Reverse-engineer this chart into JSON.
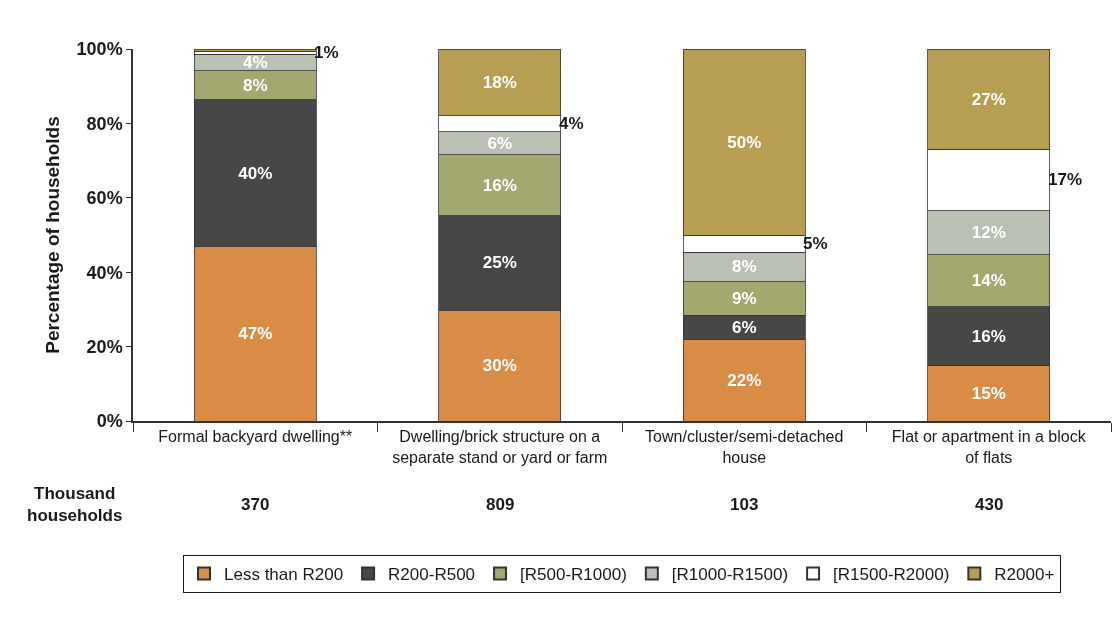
{
  "chart_data": {
    "type": "bar",
    "stacked": true,
    "ylabel": "Percentage of households",
    "categories": [
      "Formal backyard dwelling**",
      "Dwelling/brick structure on a separate stand or yard or farm",
      "Town/cluster/semi-detached house",
      "Flat or apartment in a block of flats"
    ],
    "ylim": [
      0,
      100
    ],
    "yticks": [
      {
        "value": 0,
        "label": "0%"
      },
      {
        "value": 20,
        "label": "20%"
      },
      {
        "value": 40,
        "label": "40%"
      },
      {
        "value": 60,
        "label": "60%"
      },
      {
        "value": 80,
        "label": "80%"
      },
      {
        "value": 100,
        "label": "100%"
      }
    ],
    "grid": false,
    "legend": "bottom",
    "series": [
      {
        "name": "Less than R200",
        "color": "#d98c45",
        "values": [
          46.8,
          29.8,
          22.0,
          14.8
        ],
        "value_labels": [
          "47%",
          "30%",
          "22%",
          "15%"
        ]
      },
      {
        "name": "R200-R500",
        "color": "#474747",
        "values": [
          39.6,
          25.4,
          6.4,
          15.9
        ],
        "value_labels": [
          "40%",
          "25%",
          "6%",
          "16%"
        ]
      },
      {
        "name": "[R500-R1000)",
        "color": "#a3a870",
        "values": [
          7.8,
          16.4,
          9.0,
          14.0
        ],
        "value_labels": [
          "8%",
          "16%",
          "9%",
          "14%"
        ]
      },
      {
        "name": "[R1000-R1500)",
        "color": "#bbc0b5",
        "values": [
          4.4,
          6.2,
          8.0,
          11.8
        ],
        "value_labels": [
          "4%",
          "6%",
          "8%",
          "12%"
        ]
      },
      {
        "name": "[R1500-R2000)",
        "color": "#ffffff",
        "values": [
          0.8,
          4.2,
          4.6,
          16.6
        ],
        "value_labels": [
          "1%",
          "4%",
          "5%",
          "17%"
        ]
      },
      {
        "name": "R2000+",
        "color": "#b89e52",
        "values": [
          0.5,
          18.0,
          50.0,
          26.9
        ],
        "value_labels": [
          null,
          "18%",
          "50%",
          "27%"
        ]
      }
    ],
    "annotations": [
      "Thousand households",
      "370",
      "809",
      "103",
      "430"
    ]
  }
}
